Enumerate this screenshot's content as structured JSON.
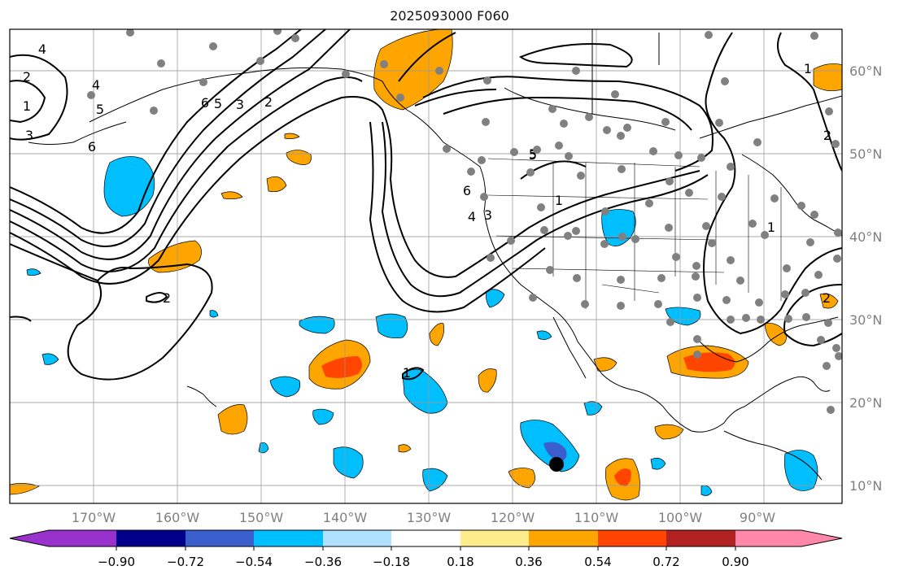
{
  "title": "2025093000 F060",
  "lon_labels": [
    "170°W",
    "160°W",
    "150°W",
    "140°W",
    "130°W",
    "120°W",
    "110°W",
    "100°W",
    "90°W"
  ],
  "lat_labels": [
    "60°N",
    "50°N",
    "40°N",
    "30°N",
    "20°N",
    "10°N"
  ],
  "colorbar": {
    "ticks": [
      "−0.90",
      "−0.72",
      "−0.54",
      "−0.36",
      "−0.18",
      "0.18",
      "0.36",
      "0.54",
      "0.72",
      "0.90"
    ],
    "colors": [
      "#9932cc",
      "#00008b",
      "#3a5fcd",
      "#00bfff",
      "#b0e2ff",
      "#ffffff",
      "#ffec8b",
      "#ffa500",
      "#ff4500",
      "#b22222",
      "#ff88aa"
    ]
  },
  "contour_labels": [
    "4",
    "2",
    "1",
    "3",
    "4",
    "5",
    "6",
    "6",
    "5",
    "3",
    "2",
    "2",
    "6",
    "5",
    "4",
    "3",
    "1",
    "5",
    "1",
    "2",
    "1",
    "2",
    "1"
  ],
  "colors": {
    "positive": "#ffa500",
    "positive_strong": "#ff4500",
    "negative": "#00bfff",
    "negative_strong": "#3a5fcd",
    "station": "#808080",
    "marker": "#000000"
  }
}
